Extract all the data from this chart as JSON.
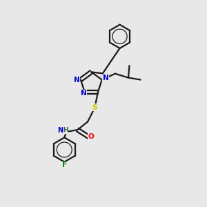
{
  "background_color": "#e8e8e8",
  "bond_color": "#1a1a1a",
  "figsize": [
    3.0,
    3.0
  ],
  "dpi": 100,
  "atom_colors": {
    "N": "#0000cc",
    "S": "#cccc00",
    "O": "#ff0000",
    "F": "#008800",
    "H": "#446644",
    "C": "#1a1a1a"
  },
  "lw": 1.6,
  "fontsize": 8
}
